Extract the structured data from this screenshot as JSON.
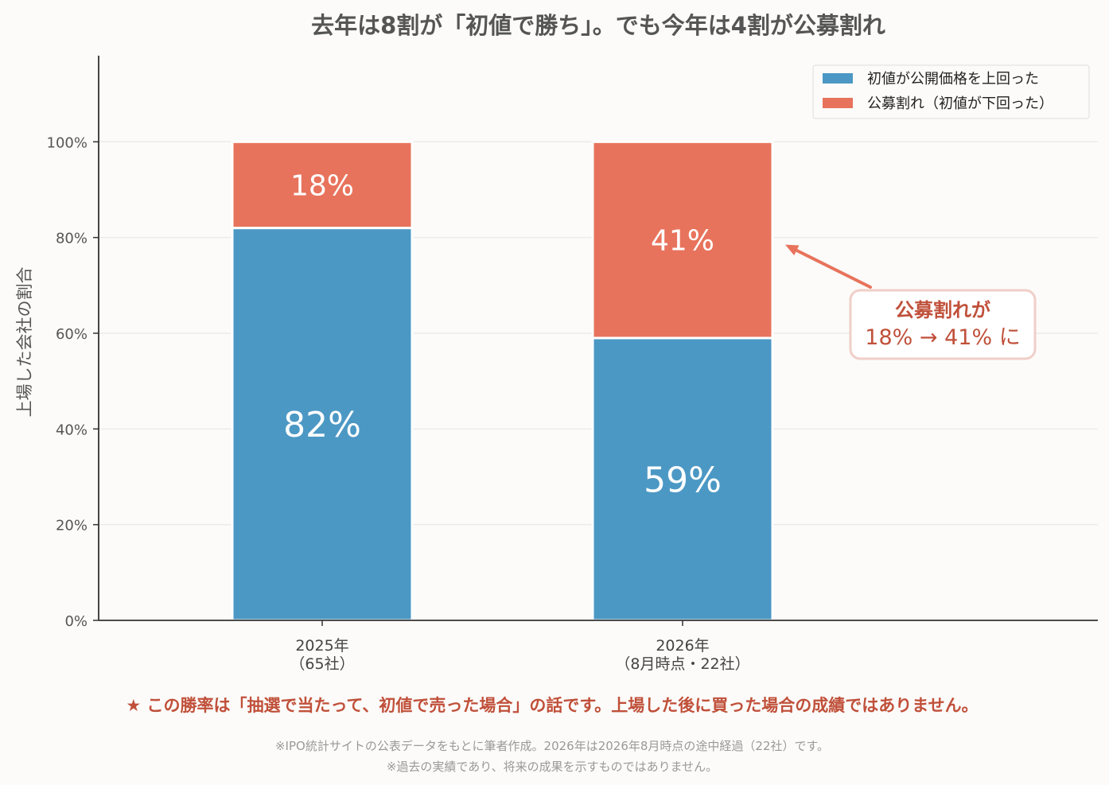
{
  "chart_data": {
    "type": "bar",
    "stacked": true,
    "title": "去年は8割が「初値で勝ち」。でも今年は4割が公募割れ",
    "ylabel": "上場した会社の割合",
    "xlabel": "",
    "ylim": [
      0,
      118
    ],
    "yticks": [
      0,
      20,
      40,
      60,
      80,
      100
    ],
    "ytick_labels": [
      "0%",
      "20%",
      "40%",
      "60%",
      "80%",
      "100%"
    ],
    "grid": true,
    "legend_position": "top-right",
    "categories": [
      {
        "line1": "2025年",
        "line2": "（65社）"
      },
      {
        "line1": "2026年",
        "line2": "（8月時点・22社）"
      }
    ],
    "series": [
      {
        "name": "初値が公開価格を上回った",
        "color": "#4c98c4",
        "values": [
          82,
          59
        ],
        "labels": [
          "82%",
          "59%"
        ]
      },
      {
        "name": "公募割れ（初値が下回った）",
        "color": "#e8735c",
        "values": [
          18,
          41
        ],
        "labels": [
          "18%",
          "41%"
        ]
      }
    ],
    "annotation": {
      "line1": "公募割れが",
      "line2": "18% → 41% に",
      "color": "#c0503a",
      "border_color": "#f0cfc8",
      "target_category": 1,
      "target_value": 78.5
    }
  },
  "notes": {
    "highlight": "★ この勝率は「抽選で当たって、初値で売った場合」の話です。上場した後に買った場合の成績ではありません。",
    "source1": "※IPO統計サイトの公表データをもとに筆者作成。2026年は2026年8月時点の途中経過（22社）です。",
    "source2": "※過去の実績であり、将来の成果を示すものではありません。"
  },
  "colors": {
    "highlight": "#c0503a",
    "muted": "#999999",
    "grid": "#ebebeb",
    "axis": "#333333"
  }
}
